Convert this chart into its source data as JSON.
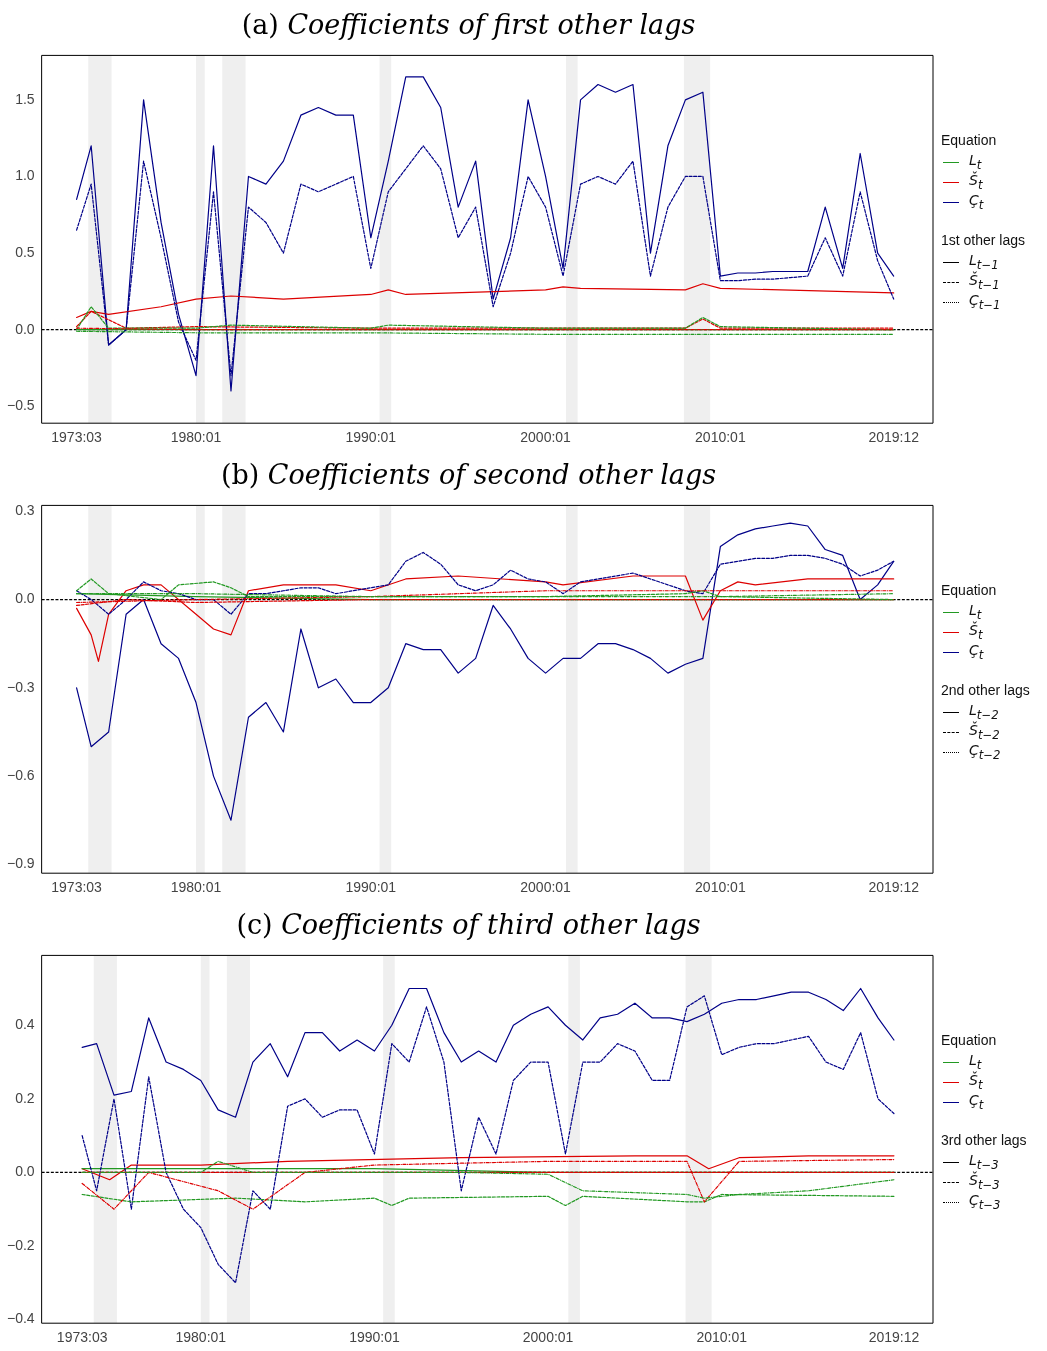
{
  "chart_data": [
    {
      "type": "line",
      "title": "(a) Coefficients of first other lags",
      "legend": "right",
      "legend_title": "Equation",
      "grid": false,
      "x": [
        "1973-03",
        "1974",
        "1975",
        "1976",
        "1977",
        "1978",
        "1979",
        "1980",
        "1981",
        "1982",
        "1983",
        "1984",
        "1985",
        "1986",
        "1987",
        "1988",
        "1989",
        "1990",
        "1991",
        "1992",
        "1993",
        "1994",
        "1995",
        "1996",
        "1997",
        "1998",
        "1999",
        "2000",
        "2001",
        "2002",
        "2003",
        "2004",
        "2005",
        "2006",
        "2007",
        "2008",
        "2009",
        "2010",
        "2011",
        "2012",
        "2013",
        "2014",
        "2015",
        "2016",
        "2017",
        "2018",
        "2019",
        "2019-12"
      ],
      "xlim": [
        "1971-03",
        "2022-03"
      ],
      "xticks": [
        {
          "value": "1973-03",
          "label": "1973:03"
        },
        {
          "value": "1980-01",
          "label": "1980:01"
        },
        {
          "value": "1990-01",
          "label": "1990:01"
        },
        {
          "value": "2000-01",
          "label": "2000:01"
        },
        {
          "value": "2010-01",
          "label": "2010:01"
        },
        {
          "value": "2019-12",
          "label": "2019:12"
        }
      ],
      "ylim": [
        -0.61,
        1.79
      ],
      "yticks": [
        {
          "value": -0.5,
          "label": "−0.5"
        },
        {
          "value": 0,
          "label": "0.0"
        },
        {
          "value": 0.5,
          "label": "0.5"
        },
        {
          "value": 1,
          "label": "1.0"
        },
        {
          "value": 1.5,
          "label": "1.5"
        }
      ],
      "series": [
        {
          "name": "L$_{t}$",
          "color": "#229922",
          "line_style": "solid",
          "x": [
            "1973-03",
            "1980",
            "1990",
            "2000",
            "2010",
            "2019-12"
          ],
          "values": [
            0.0,
            0.0,
            0.0,
            0.0,
            0.0,
            0.0
          ]
        },
        {
          "color": "#229922",
          "line_style": "dashed",
          "x": [
            "1973-03",
            "1974",
            "1975",
            "1980",
            "1982",
            "1990",
            "1991",
            "2000",
            "2008",
            "2009",
            "2010",
            "2019-12"
          ],
          "values": [
            0.0,
            0.15,
            0.01,
            0.01,
            0.03,
            0.01,
            0.03,
            0.01,
            0.01,
            0.08,
            0.02,
            0.0
          ]
        },
        {
          "color": "#229922",
          "line_style": "dotted",
          "x": [
            "1973-03",
            "1980",
            "1990",
            "2000",
            "2010",
            "2019-12"
          ],
          "values": [
            -0.01,
            -0.02,
            -0.02,
            -0.03,
            -0.03,
            -0.03
          ]
        },
        {
          "name": "Š$_{t}$",
          "color": "#dd0000",
          "line_style": "solid",
          "x": [
            "1973-03",
            "1974",
            "1975",
            "1978",
            "1980",
            "1982",
            "1985",
            "1990",
            "1991",
            "1992",
            "2000",
            "2001",
            "2002",
            "2008",
            "2009",
            "2010",
            "2019-12"
          ],
          "values": [
            0.08,
            0.12,
            0.1,
            0.15,
            0.2,
            0.22,
            0.2,
            0.23,
            0.26,
            0.23,
            0.26,
            0.28,
            0.27,
            0.26,
            0.3,
            0.27,
            0.24
          ]
        },
        {
          "color": "#dd0000",
          "line_style": "dashed",
          "x": [
            "1973-03",
            "1974",
            "1976",
            "1980",
            "1990",
            "2000",
            "2008",
            "2009",
            "2010",
            "2019-12"
          ],
          "values": [
            0.02,
            0.12,
            0.01,
            0.02,
            0.01,
            0.01,
            0.01,
            0.07,
            0.01,
            0.01
          ]
        },
        {
          "color": "#dd0000",
          "line_style": "dotted",
          "x": [
            "1973-03",
            "1980",
            "1990",
            "2000",
            "2010",
            "2019-12"
          ],
          "values": [
            0.01,
            0.0,
            0.0,
            0.0,
            0.0,
            0.0
          ]
        },
        {
          "name": "Ç$_{t}$",
          "color": "#000088",
          "line_style": "solid",
          "values": [
            0.85,
            1.2,
            -0.1,
            0.0,
            1.5,
            0.7,
            0.1,
            -0.3,
            1.2,
            -0.4,
            1.0,
            0.95,
            1.1,
            1.4,
            1.45,
            1.4,
            1.4,
            0.6,
            1.1,
            1.65,
            1.65,
            1.45,
            0.8,
            1.1,
            0.2,
            0.6,
            1.5,
            1.0,
            0.4,
            1.5,
            1.6,
            1.55,
            1.6,
            0.5,
            1.2,
            1.5,
            1.55,
            0.35,
            0.37,
            0.37,
            0.38,
            0.38,
            0.38,
            0.8,
            0.4,
            1.15,
            0.5,
            0.35
          ]
        },
        {
          "color": "#000088",
          "line_style": "dashed",
          "values": [
            0.65,
            0.95,
            -0.1,
            0.0,
            1.1,
            0.6,
            0.05,
            -0.2,
            0.9,
            -0.3,
            0.8,
            0.7,
            0.5,
            0.95,
            0.9,
            0.95,
            1.0,
            0.4,
            0.9,
            1.05,
            1.2,
            1.05,
            0.6,
            0.8,
            0.15,
            0.5,
            1.0,
            0.8,
            0.35,
            0.95,
            1.0,
            0.95,
            1.1,
            0.35,
            0.8,
            1.0,
            1.0,
            0.32,
            0.32,
            0.33,
            0.33,
            0.34,
            0.35,
            0.6,
            0.35,
            0.9,
            0.45,
            0.2
          ]
        }
      ],
      "bands": [
        {
          "axis": "x",
          "from": "1973-11",
          "to": "1975-03",
          "color": "#efefef"
        },
        {
          "axis": "x",
          "from": "1980-01",
          "to": "1980-07",
          "color": "#efefef"
        },
        {
          "axis": "x",
          "from": "1981-07",
          "to": "1982-11",
          "color": "#efefef"
        },
        {
          "axis": "x",
          "from": "1990-07",
          "to": "1991-03",
          "color": "#efefef"
        },
        {
          "axis": "x",
          "from": "2001-03",
          "to": "2001-11",
          "color": "#efefef"
        },
        {
          "axis": "x",
          "from": "2007-12",
          "to": "2009-06",
          "color": "#efefef"
        }
      ],
      "ref_lines": [
        {
          "axis": "y",
          "value": 0,
          "color": "#000000",
          "line_style": "dashed"
        }
      ],
      "annotations": [
        "1st other lags",
        "L$_{t−1}$",
        "Š$_{t−1}$",
        "Ç$_{t−1}$"
      ]
    },
    {
      "type": "line",
      "title": "(b) Coefficients of second other lags",
      "legend": "right",
      "legend_title": "Equation",
      "grid": false,
      "x": [
        "1973-03",
        "1974",
        "1975",
        "1976",
        "1977",
        "1978",
        "1979",
        "1980",
        "1981",
        "1982",
        "1983",
        "1984",
        "1985",
        "1986",
        "1987",
        "1988",
        "1989",
        "1990",
        "1991",
        "1992",
        "1993",
        "1994",
        "1995",
        "1996",
        "1997",
        "1998",
        "1999",
        "2000",
        "2001",
        "2002",
        "2003",
        "2004",
        "2005",
        "2006",
        "2007",
        "2008",
        "2009",
        "2010",
        "2011",
        "2012",
        "2013",
        "2014",
        "2015",
        "2016",
        "2017",
        "2018",
        "2019",
        "2019-12"
      ],
      "xlim": [
        "1971-03",
        "2022-03"
      ],
      "xticks": [
        {
          "value": "1973-03",
          "label": "1973:03"
        },
        {
          "value": "1980-01",
          "label": "1980:01"
        },
        {
          "value": "1990-01",
          "label": "1990:01"
        },
        {
          "value": "2000-01",
          "label": "2000:01"
        },
        {
          "value": "2010-01",
          "label": "2010:01"
        },
        {
          "value": "2019-12",
          "label": "2019:12"
        }
      ],
      "ylim": [
        -0.93,
        0.32
      ],
      "yticks": [
        {
          "value": -0.9,
          "label": "−0.9"
        },
        {
          "value": -0.6,
          "label": "−0.6"
        },
        {
          "value": -0.3,
          "label": "−0.3"
        },
        {
          "value": 0,
          "label": "0.0"
        },
        {
          "value": 0.3,
          "label": "0.3"
        }
      ],
      "series": [
        {
          "name": "L$_{t}$",
          "color": "#229922",
          "line_style": "solid",
          "x": [
            "1973-03",
            "1980",
            "1990",
            "2000",
            "2010",
            "2019-12"
          ],
          "values": [
            0.02,
            0.01,
            0.0,
            0.0,
            0.0,
            0.0
          ]
        },
        {
          "color": "#229922",
          "line_style": "dashed",
          "x": [
            "1973-03",
            "1974",
            "1975",
            "1978",
            "1979",
            "1981",
            "1982",
            "1983",
            "1990",
            "2000",
            "2008",
            "2009",
            "2010",
            "2019-12"
          ],
          "values": [
            0.03,
            0.07,
            0.02,
            0.0,
            0.05,
            0.06,
            0.04,
            0.01,
            0.01,
            0.01,
            0.02,
            0.03,
            0.01,
            0.0
          ]
        },
        {
          "color": "#229922",
          "line_style": "dotted",
          "x": [
            "1973-03",
            "1980",
            "1990",
            "2000",
            "2010",
            "2019-12"
          ],
          "values": [
            0.02,
            0.02,
            0.01,
            0.01,
            0.01,
            0.02
          ]
        },
        {
          "name": "Š$_{t}$",
          "color": "#dd0000",
          "line_style": "solid",
          "x": [
            "1973-03",
            "1974",
            "1974-06",
            "1975",
            "1976",
            "1977",
            "1978",
            "1980",
            "1981",
            "1982",
            "1983",
            "1985",
            "1988",
            "1990",
            "1992",
            "1995",
            "2000",
            "2001",
            "2005",
            "2008",
            "2009",
            "2010",
            "2011",
            "2012",
            "2015",
            "2018",
            "2019-12"
          ],
          "values": [
            -0.03,
            -0.12,
            -0.21,
            -0.05,
            0.03,
            0.05,
            0.05,
            -0.05,
            -0.1,
            -0.12,
            0.03,
            0.05,
            0.05,
            0.03,
            0.07,
            0.08,
            0.06,
            0.05,
            0.08,
            0.08,
            -0.07,
            0.03,
            0.06,
            0.05,
            0.07,
            0.07,
            0.07
          ]
        },
        {
          "color": "#dd0000",
          "line_style": "dashed",
          "x": [
            "1973-03",
            "1976",
            "1980",
            "1990",
            "2000",
            "2010",
            "2019-12"
          ],
          "values": [
            -0.02,
            0.0,
            -0.01,
            0.0,
            0.0,
            0.0,
            0.0
          ]
        },
        {
          "color": "#dd0000",
          "line_style": "dotted",
          "x": [
            "1973-03",
            "1980",
            "1990",
            "2000",
            "2008",
            "2010",
            "2019-12"
          ],
          "values": [
            -0.01,
            0.0,
            0.01,
            0.03,
            0.03,
            0.03,
            0.03
          ]
        },
        {
          "name": "Ç$_{t}$",
          "color": "#000088",
          "line_style": "solid",
          "values": [
            -0.3,
            -0.5,
            -0.45,
            -0.05,
            0.0,
            -0.15,
            -0.2,
            -0.35,
            -0.6,
            -0.75,
            -0.4,
            -0.35,
            -0.45,
            -0.1,
            -0.3,
            -0.27,
            -0.35,
            -0.35,
            -0.3,
            -0.15,
            -0.17,
            -0.17,
            -0.25,
            -0.2,
            -0.02,
            -0.1,
            -0.2,
            -0.25,
            -0.2,
            -0.2,
            -0.15,
            -0.15,
            -0.17,
            -0.2,
            -0.25,
            -0.22,
            -0.2,
            0.18,
            0.22,
            0.24,
            0.25,
            0.26,
            0.25,
            0.17,
            0.15,
            0.0,
            0.05,
            0.13
          ]
        },
        {
          "color": "#000088",
          "line_style": "dashed",
          "values": [
            0.03,
            0.0,
            -0.05,
            0.0,
            0.06,
            0.03,
            0.02,
            0.0,
            0.0,
            -0.05,
            0.02,
            0.02,
            0.03,
            0.04,
            0.04,
            0.02,
            0.03,
            0.04,
            0.05,
            0.13,
            0.16,
            0.12,
            0.05,
            0.03,
            0.05,
            0.1,
            0.07,
            0.06,
            0.02,
            0.06,
            0.07,
            0.08,
            0.09,
            0.07,
            0.05,
            0.03,
            0.02,
            0.12,
            0.13,
            0.14,
            0.14,
            0.15,
            0.15,
            0.14,
            0.12,
            0.08,
            0.1,
            0.13
          ]
        }
      ],
      "bands": [
        {
          "axis": "x",
          "from": "1973-11",
          "to": "1975-03",
          "color": "#efefef"
        },
        {
          "axis": "x",
          "from": "1980-01",
          "to": "1980-07",
          "color": "#efefef"
        },
        {
          "axis": "x",
          "from": "1981-07",
          "to": "1982-11",
          "color": "#efefef"
        },
        {
          "axis": "x",
          "from": "1990-07",
          "to": "1991-03",
          "color": "#efefef"
        },
        {
          "axis": "x",
          "from": "2001-03",
          "to": "2001-11",
          "color": "#efefef"
        },
        {
          "axis": "x",
          "from": "2007-12",
          "to": "2009-06",
          "color": "#efefef"
        }
      ],
      "ref_lines": [
        {
          "axis": "y",
          "value": 0,
          "color": "#000000",
          "line_style": "dashed"
        }
      ],
      "annotations": [
        "2nd other lags",
        "L$_{t−2}$",
        "Š$_{t−2}$",
        "Ç$_{t−2}$"
      ]
    },
    {
      "type": "line",
      "title": "(c) Coefficients of third other lags",
      "legend": "right",
      "legend_title": "Equation",
      "grid": false,
      "x": [
        "1973-03",
        "1974",
        "1975",
        "1976",
        "1977",
        "1978",
        "1979",
        "1980",
        "1981",
        "1982",
        "1983",
        "1984",
        "1985",
        "1986",
        "1987",
        "1988",
        "1989",
        "1990",
        "1991",
        "1992",
        "1993",
        "1994",
        "1995",
        "1996",
        "1997",
        "1998",
        "1999",
        "2000",
        "2001",
        "2002",
        "2003",
        "2004",
        "2005",
        "2006",
        "2007",
        "2008",
        "2009",
        "2010",
        "2011",
        "2012",
        "2013",
        "2014",
        "2015",
        "2016",
        "2017",
        "2018",
        "2019",
        "2019-12"
      ],
      "xlim": [
        "1970-11",
        "2022-03"
      ],
      "xticks": [
        {
          "value": "1973-03",
          "label": "1973:03"
        },
        {
          "value": "1980-01",
          "label": "1980:01"
        },
        {
          "value": "1990-01",
          "label": "1990:01"
        },
        {
          "value": "2000-01",
          "label": "2000:01"
        },
        {
          "value": "2010-01",
          "label": "2010:01"
        },
        {
          "value": "2019-12",
          "label": "2019:12"
        }
      ],
      "ylim": [
        -0.41,
        0.59
      ],
      "yticks": [
        {
          "value": -0.4,
          "label": "−0.4"
        },
        {
          "value": -0.2,
          "label": "−0.2"
        },
        {
          "value": 0,
          "label": "0.0"
        },
        {
          "value": 0.2,
          "label": "0.2"
        },
        {
          "value": 0.4,
          "label": "0.4"
        }
      ],
      "series": [
        {
          "name": "L$_{t}$",
          "color": "#229922",
          "line_style": "solid",
          "x": [
            "1973-03",
            "1980",
            "1990",
            "2000",
            "2010",
            "2019-12"
          ],
          "values": [
            0.01,
            0.01,
            0.01,
            0.0,
            0.0,
            0.0
          ]
        },
        {
          "color": "#229922",
          "line_style": "dashed",
          "x": [
            "1973-03",
            "1976",
            "1982",
            "1986",
            "1990",
            "1991",
            "1992",
            "2000",
            "2001",
            "2002",
            "2008",
            "2009",
            "2010",
            "2019-12"
          ],
          "values": [
            -0.06,
            -0.08,
            -0.07,
            -0.08,
            -0.07,
            -0.09,
            -0.07,
            -0.065,
            -0.09,
            -0.065,
            -0.08,
            -0.08,
            -0.06,
            -0.065
          ]
        },
        {
          "color": "#229922",
          "line_style": "dotted",
          "x": [
            "1973-03",
            "1980",
            "1981",
            "1983",
            "1986",
            "1995",
            "2000",
            "2002",
            "2008",
            "2009",
            "2011",
            "2015",
            "2019-12"
          ],
          "values": [
            0.0,
            0.0,
            0.03,
            0.0,
            0.0,
            0.0,
            -0.005,
            -0.05,
            -0.06,
            -0.07,
            -0.06,
            -0.05,
            -0.02
          ]
        },
        {
          "name": "Š$_{t}$",
          "color": "#dd0000",
          "line_style": "solid",
          "x": [
            "1973-03",
            "1974-10",
            "1976",
            "1980",
            "1985",
            "1995",
            "2005",
            "2008",
            "2009-04",
            "2011",
            "2015",
            "2019-12"
          ],
          "values": [
            0.01,
            -0.02,
            0.02,
            0.02,
            0.03,
            0.04,
            0.045,
            0.045,
            0.01,
            0.04,
            0.045,
            0.045
          ]
        },
        {
          "color": "#dd0000",
          "line_style": "dashed",
          "x": [
            "1973-03",
            "1980",
            "1990",
            "2000",
            "2010",
            "2019-12"
          ],
          "values": [
            0.0,
            0.0,
            0.0,
            0.0,
            0.0,
            0.0
          ]
        },
        {
          "color": "#dd0000",
          "line_style": "dotted",
          "x": [
            "1973-03",
            "1975",
            "1977",
            "1981",
            "1983",
            "1986",
            "1990",
            "2000",
            "2008",
            "2009",
            "2011",
            "2019-12"
          ],
          "values": [
            -0.03,
            -0.1,
            0.0,
            -0.05,
            -0.1,
            0.0,
            0.02,
            0.03,
            0.03,
            -0.08,
            0.03,
            0.035
          ]
        },
        {
          "name": "Ç$_{t}$",
          "color": "#000088",
          "line_style": "solid",
          "values": [
            0.34,
            0.35,
            0.21,
            0.22,
            0.42,
            0.3,
            0.28,
            0.25,
            0.17,
            0.15,
            0.3,
            0.35,
            0.26,
            0.38,
            0.38,
            0.33,
            0.36,
            0.33,
            0.4,
            0.5,
            0.5,
            0.38,
            0.3,
            0.33,
            0.3,
            0.4,
            0.43,
            0.45,
            0.4,
            0.36,
            0.42,
            0.43,
            0.46,
            0.42,
            0.42,
            0.41,
            0.43,
            0.46,
            0.47,
            0.47,
            0.48,
            0.49,
            0.49,
            0.47,
            0.44,
            0.5,
            0.42,
            0.36
          ]
        },
        {
          "color": "#000088",
          "line_style": "dashed",
          "values": [
            0.1,
            -0.05,
            0.2,
            -0.1,
            0.26,
            0.0,
            -0.1,
            -0.15,
            -0.25,
            -0.3,
            -0.05,
            -0.1,
            0.18,
            0.2,
            0.15,
            0.17,
            0.17,
            0.05,
            0.35,
            0.3,
            0.45,
            0.3,
            -0.05,
            0.15,
            0.05,
            0.25,
            0.3,
            0.3,
            0.05,
            0.3,
            0.3,
            0.35,
            0.33,
            0.25,
            0.25,
            0.45,
            0.48,
            0.32,
            0.34,
            0.35,
            0.35,
            0.36,
            0.37,
            0.3,
            0.28,
            0.38,
            0.2,
            0.16
          ]
        }
      ],
      "bands": [
        {
          "axis": "x",
          "from": "1973-11",
          "to": "1975-03",
          "color": "#efefef"
        },
        {
          "axis": "x",
          "from": "1980-01",
          "to": "1980-07",
          "color": "#efefef"
        },
        {
          "axis": "x",
          "from": "1981-07",
          "to": "1982-11",
          "color": "#efefef"
        },
        {
          "axis": "x",
          "from": "1990-07",
          "to": "1991-03",
          "color": "#efefef"
        },
        {
          "axis": "x",
          "from": "2001-03",
          "to": "2001-11",
          "color": "#efefef"
        },
        {
          "axis": "x",
          "from": "2007-12",
          "to": "2009-06",
          "color": "#efefef"
        }
      ],
      "ref_lines": [
        {
          "axis": "y",
          "value": 0,
          "color": "#000000",
          "line_style": "dashed"
        }
      ],
      "annotations": [
        "3rd other lags",
        "L$_{t−3}$",
        "Š$_{t−3}$",
        "Ç$_{t−3}$"
      ]
    }
  ]
}
